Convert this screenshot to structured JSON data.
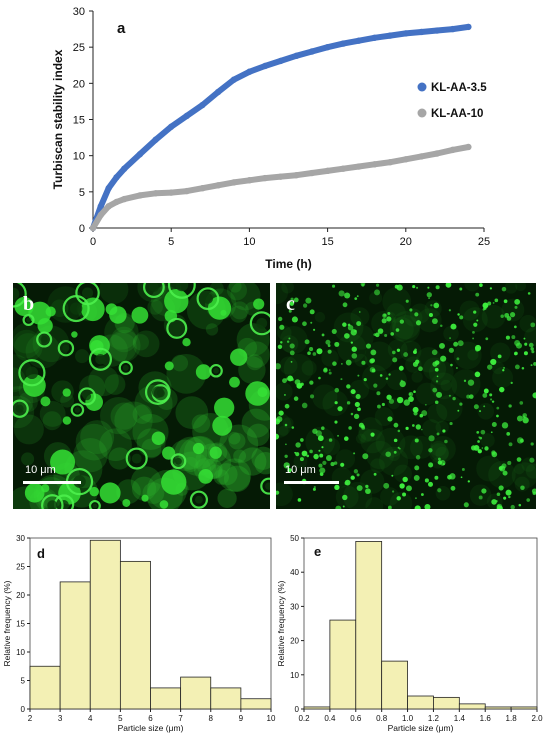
{
  "figure": {
    "panel_labels": {
      "a": "a",
      "b": "b",
      "c": "c",
      "d": "d",
      "e": "e"
    }
  },
  "chart_data": [
    {
      "type": "scatter",
      "panel": "a",
      "xlabel": "Time (h)",
      "ylabel": "Turbiscan stability index",
      "xlim": [
        0,
        25
      ],
      "ylim": [
        0,
        30
      ],
      "xticks": [
        0,
        5,
        10,
        15,
        20,
        25
      ],
      "yticks": [
        0,
        5,
        10,
        15,
        20,
        25,
        30
      ],
      "legend_position": "right",
      "grid": false,
      "series": [
        {
          "name": "KL-AA-3.5",
          "color": "#4472c4",
          "x": [
            0,
            0.5,
            1,
            1.5,
            2,
            3,
            4,
            5,
            6,
            7,
            8,
            9,
            10,
            11,
            12,
            13,
            14,
            15,
            16,
            17,
            18,
            19,
            20,
            21,
            22,
            23,
            24
          ],
          "y": [
            0,
            3,
            5.5,
            7,
            8.2,
            10.2,
            12.2,
            14,
            15.5,
            17,
            18.8,
            20.5,
            21.6,
            22.4,
            23.1,
            23.8,
            24.4,
            25,
            25.5,
            25.9,
            26.3,
            26.6,
            26.9,
            27.1,
            27.3,
            27.5,
            27.8
          ]
        },
        {
          "name": "KL-AA-10",
          "color": "#a6a6a6",
          "x": [
            0,
            0.5,
            1,
            1.5,
            2,
            3,
            4,
            5,
            6,
            7,
            8,
            9,
            10,
            11,
            12,
            13,
            14,
            15,
            16,
            17,
            18,
            19,
            20,
            21,
            22,
            23,
            24
          ],
          "y": [
            0,
            1.8,
            3,
            3.6,
            4,
            4.5,
            4.8,
            4.9,
            5.1,
            5.5,
            5.9,
            6.3,
            6.6,
            6.9,
            7.1,
            7.3,
            7.6,
            7.9,
            8.2,
            8.5,
            8.8,
            9.1,
            9.5,
            9.9,
            10.3,
            10.8,
            11.2
          ]
        }
      ]
    },
    {
      "type": "bar",
      "panel": "d",
      "xlabel": "Particle size (μm)",
      "ylabel": "Relative frequency (%)",
      "xlim": [
        2,
        10
      ],
      "ylim": [
        0,
        30
      ],
      "xticks": [
        2,
        3,
        4,
        5,
        6,
        7,
        8,
        9,
        10
      ],
      "yticks": [
        0,
        5,
        10,
        15,
        20,
        25,
        30
      ],
      "bin_edges": [
        2,
        3,
        4,
        5,
        6,
        7,
        8,
        9,
        10
      ],
      "values": [
        7.5,
        22.3,
        29.6,
        25.9,
        3.7,
        5.6,
        3.7,
        1.8
      ],
      "color": "#f3f0b4"
    },
    {
      "type": "bar",
      "panel": "e",
      "xlabel": "Particle size (μm)",
      "ylabel": "Relative frequency (%)",
      "xlim": [
        0.2,
        2.0
      ],
      "ylim": [
        0,
        50
      ],
      "xticks": [
        "0.2",
        "0.4",
        "0.6",
        "0.8",
        "1.0",
        "1.2",
        "1.4",
        "1.6",
        "1.8",
        "2.0"
      ],
      "yticks": [
        0,
        10,
        20,
        30,
        40,
        50
      ],
      "bin_edges": [
        0.2,
        0.4,
        0.6,
        0.8,
        1.0,
        1.2,
        1.4,
        1.6,
        1.8,
        2.0
      ],
      "values": [
        0.6,
        26,
        49,
        14,
        3.8,
        3.4,
        1.5,
        0.6,
        0.6
      ],
      "color": "#f3f0b4"
    }
  ],
  "micrographs": [
    {
      "label": "b",
      "scale_bar": "10 μm"
    },
    {
      "label": "c",
      "scale_bar": "10 μm"
    }
  ]
}
